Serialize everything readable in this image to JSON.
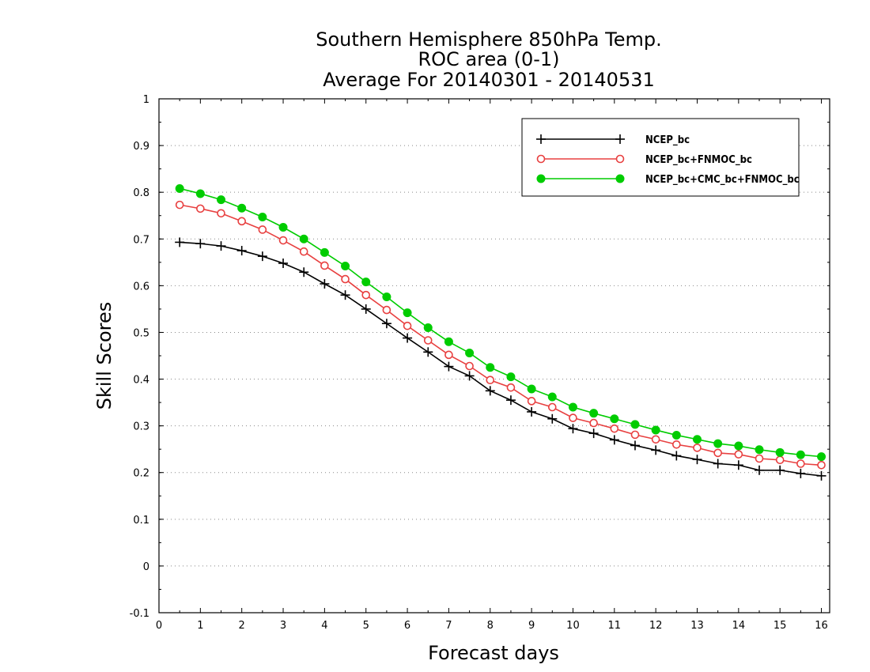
{
  "chart_data": {
    "type": "line",
    "title_lines": [
      "Southern Hemisphere 850hPa Temp.",
      "ROC area (0-1)",
      "Average For 20140301 - 20140531"
    ],
    "xlabel": "Forecast days",
    "ylabel": "Skill Scores",
    "xlim": [
      0,
      16.2
    ],
    "ylim": [
      -0.1,
      1
    ],
    "x_ticks": [
      0,
      1,
      2,
      3,
      4,
      5,
      6,
      7,
      8,
      9,
      10,
      11,
      12,
      13,
      14,
      15,
      16
    ],
    "x_tick_labels": [
      "0",
      "1",
      "2",
      "3",
      "4",
      "5",
      "6",
      "7",
      "8",
      "9",
      "10",
      "11",
      "12",
      "13",
      "14",
      "15",
      "16"
    ],
    "y_ticks": [
      -0.1,
      0,
      0.1,
      0.2,
      0.3,
      0.4,
      0.5,
      0.6,
      0.7,
      0.8,
      0.9,
      1
    ],
    "y_tick_labels": [
      "-0.1",
      "0",
      "0.1",
      "0.2",
      "0.3",
      "0.4",
      "0.5",
      "0.6",
      "0.7",
      "0.8",
      "0.9",
      "1"
    ],
    "grid": "horizontal-dotted",
    "legend_position": "top-right",
    "x": [
      0.5,
      1,
      1.5,
      2,
      2.5,
      3,
      3.5,
      4,
      4.5,
      5,
      5.5,
      6,
      6.5,
      7,
      7.5,
      8,
      8.5,
      9,
      9.5,
      10,
      10.5,
      11,
      11.5,
      12,
      12.5,
      13,
      13.5,
      14,
      14.5,
      15,
      15.5,
      16
    ],
    "series": [
      {
        "name": "NCEP_bc",
        "color": "#000000",
        "marker": "plus",
        "values": [
          0.693,
          0.69,
          0.685,
          0.675,
          0.663,
          0.648,
          0.629,
          0.604,
          0.58,
          0.55,
          0.519,
          0.488,
          0.458,
          0.427,
          0.407,
          0.375,
          0.355,
          0.33,
          0.315,
          0.294,
          0.284,
          0.27,
          0.258,
          0.248,
          0.236,
          0.228,
          0.219,
          0.216,
          0.205,
          0.205,
          0.198,
          0.193
        ]
      },
      {
        "name": "NCEP_bc+FNMOC_bc",
        "color": "#e84040",
        "marker": "open-circle",
        "values": [
          0.773,
          0.765,
          0.755,
          0.738,
          0.72,
          0.697,
          0.673,
          0.643,
          0.614,
          0.58,
          0.548,
          0.514,
          0.483,
          0.452,
          0.428,
          0.398,
          0.382,
          0.353,
          0.34,
          0.317,
          0.306,
          0.294,
          0.281,
          0.271,
          0.26,
          0.253,
          0.242,
          0.239,
          0.23,
          0.227,
          0.219,
          0.216
        ]
      },
      {
        "name": "NCEP_bc+CMC_bc+FNMOC_bc",
        "color": "#00cc00",
        "marker": "filled-circle",
        "values": [
          0.808,
          0.797,
          0.784,
          0.766,
          0.747,
          0.725,
          0.7,
          0.671,
          0.642,
          0.608,
          0.576,
          0.542,
          0.51,
          0.48,
          0.456,
          0.425,
          0.405,
          0.379,
          0.362,
          0.34,
          0.327,
          0.315,
          0.303,
          0.291,
          0.28,
          0.271,
          0.262,
          0.257,
          0.249,
          0.243,
          0.238,
          0.234
        ]
      }
    ]
  }
}
